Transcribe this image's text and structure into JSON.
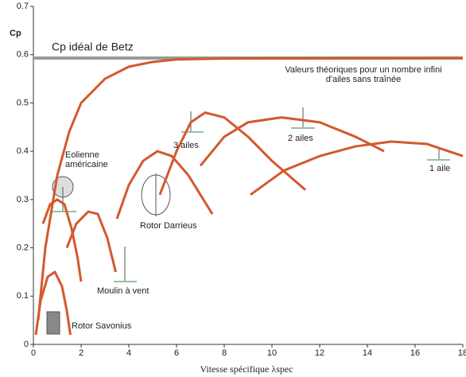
{
  "chart_data": {
    "type": "line",
    "y_label": "Cp",
    "x_label": "Vitesse spécifique λspec",
    "xlim": [
      0,
      18
    ],
    "ylim": [
      0,
      0.7
    ],
    "xticks": [
      0,
      2,
      4,
      6,
      8,
      10,
      12,
      14,
      16,
      18
    ],
    "yticks": [
      0,
      0.1,
      0.2,
      0.3,
      0.4,
      0.5,
      0.6,
      0.7
    ],
    "grid": false,
    "color": "#d2592e",
    "betz": {
      "value": 0.593,
      "label": "Cp idéal de Betz",
      "color": "#9a9a9a"
    },
    "series": [
      {
        "label": [
          "Valeurs théoriques pour un nombre infini",
          "d'ailes sans traînée"
        ],
        "x": [
          0.2,
          0.5,
          1,
          1.5,
          2,
          3,
          4,
          5,
          6,
          8,
          18
        ],
        "values": [
          0.05,
          0.2,
          0.35,
          0.44,
          0.5,
          0.55,
          0.575,
          0.585,
          0.59,
          0.592,
          0.593
        ]
      },
      {
        "label": [
          "Rotor Savonius"
        ],
        "x": [
          0.1,
          0.3,
          0.6,
          0.9,
          1.2,
          1.4,
          1.55
        ],
        "values": [
          0.02,
          0.09,
          0.14,
          0.15,
          0.12,
          0.07,
          0.02
        ]
      },
      {
        "label": [
          "Eolienne",
          "américaine"
        ],
        "x": [
          0.4,
          0.7,
          1.0,
          1.3,
          1.6,
          1.85,
          2.0
        ],
        "values": [
          0.25,
          0.29,
          0.3,
          0.29,
          0.24,
          0.18,
          0.13
        ]
      },
      {
        "label": [
          "Moulin à vent"
        ],
        "x": [
          1.4,
          1.8,
          2.3,
          2.7,
          3.1,
          3.45
        ],
        "values": [
          0.2,
          0.25,
          0.275,
          0.27,
          0.22,
          0.15
        ]
      },
      {
        "label": [
          "Rotor Darrieus"
        ],
        "x": [
          3.5,
          4,
          4.6,
          5.2,
          5.8,
          6.5,
          7.0,
          7.5
        ],
        "values": [
          0.26,
          0.33,
          0.38,
          0.4,
          0.39,
          0.35,
          0.31,
          0.27
        ]
      },
      {
        "label": [
          "3 ailes"
        ],
        "x": [
          5.3,
          6,
          6.6,
          7.2,
          8,
          9,
          10,
          11.4
        ],
        "values": [
          0.31,
          0.4,
          0.46,
          0.48,
          0.47,
          0.43,
          0.38,
          0.32
        ]
      },
      {
        "label": [
          "2 ailes"
        ],
        "x": [
          7,
          8,
          9,
          10.4,
          12,
          13.5,
          14.7
        ],
        "values": [
          0.37,
          0.43,
          0.46,
          0.47,
          0.46,
          0.43,
          0.4
        ]
      },
      {
        "label": [
          "1 aile"
        ],
        "x": [
          9.1,
          10.5,
          12,
          13.5,
          15,
          16.5,
          18
        ],
        "values": [
          0.31,
          0.36,
          0.39,
          0.41,
          0.42,
          0.415,
          0.39
        ]
      }
    ]
  }
}
